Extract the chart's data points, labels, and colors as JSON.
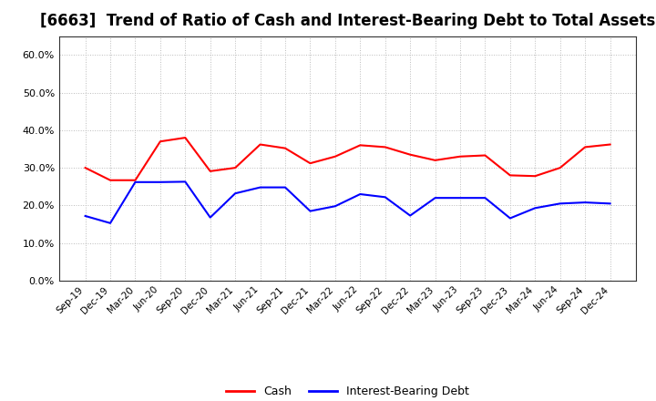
{
  "title": "[6663]  Trend of Ratio of Cash and Interest-Bearing Debt to Total Assets",
  "x_labels": [
    "Sep-19",
    "Dec-19",
    "Mar-20",
    "Jun-20",
    "Sep-20",
    "Dec-20",
    "Mar-21",
    "Jun-21",
    "Sep-21",
    "Dec-21",
    "Mar-22",
    "Jun-22",
    "Sep-22",
    "Dec-22",
    "Mar-23",
    "Jun-23",
    "Sep-23",
    "Dec-23",
    "Mar-24",
    "Jun-24",
    "Sep-24",
    "Dec-24"
  ],
  "cash": [
    0.3,
    0.267,
    0.267,
    0.37,
    0.38,
    0.291,
    0.3,
    0.362,
    0.352,
    0.312,
    0.33,
    0.36,
    0.355,
    0.335,
    0.32,
    0.33,
    0.333,
    0.28,
    0.278,
    0.3,
    0.355,
    0.362
  ],
  "interest_bearing_debt": [
    0.172,
    0.153,
    0.262,
    0.262,
    0.263,
    0.168,
    0.232,
    0.248,
    0.248,
    0.185,
    0.198,
    0.23,
    0.222,
    0.173,
    0.22,
    0.22,
    0.22,
    0.166,
    0.193,
    0.205,
    0.208,
    0.205
  ],
  "cash_color": "#ff0000",
  "debt_color": "#0000ff",
  "background_color": "#ffffff",
  "grid_color": "#aaaaaa",
  "ylim": [
    0.0,
    0.65
  ],
  "yticks": [
    0.0,
    0.1,
    0.2,
    0.3,
    0.4,
    0.5,
    0.6
  ],
  "title_fontsize": 12,
  "legend_labels": [
    "Cash",
    "Interest-Bearing Debt"
  ]
}
